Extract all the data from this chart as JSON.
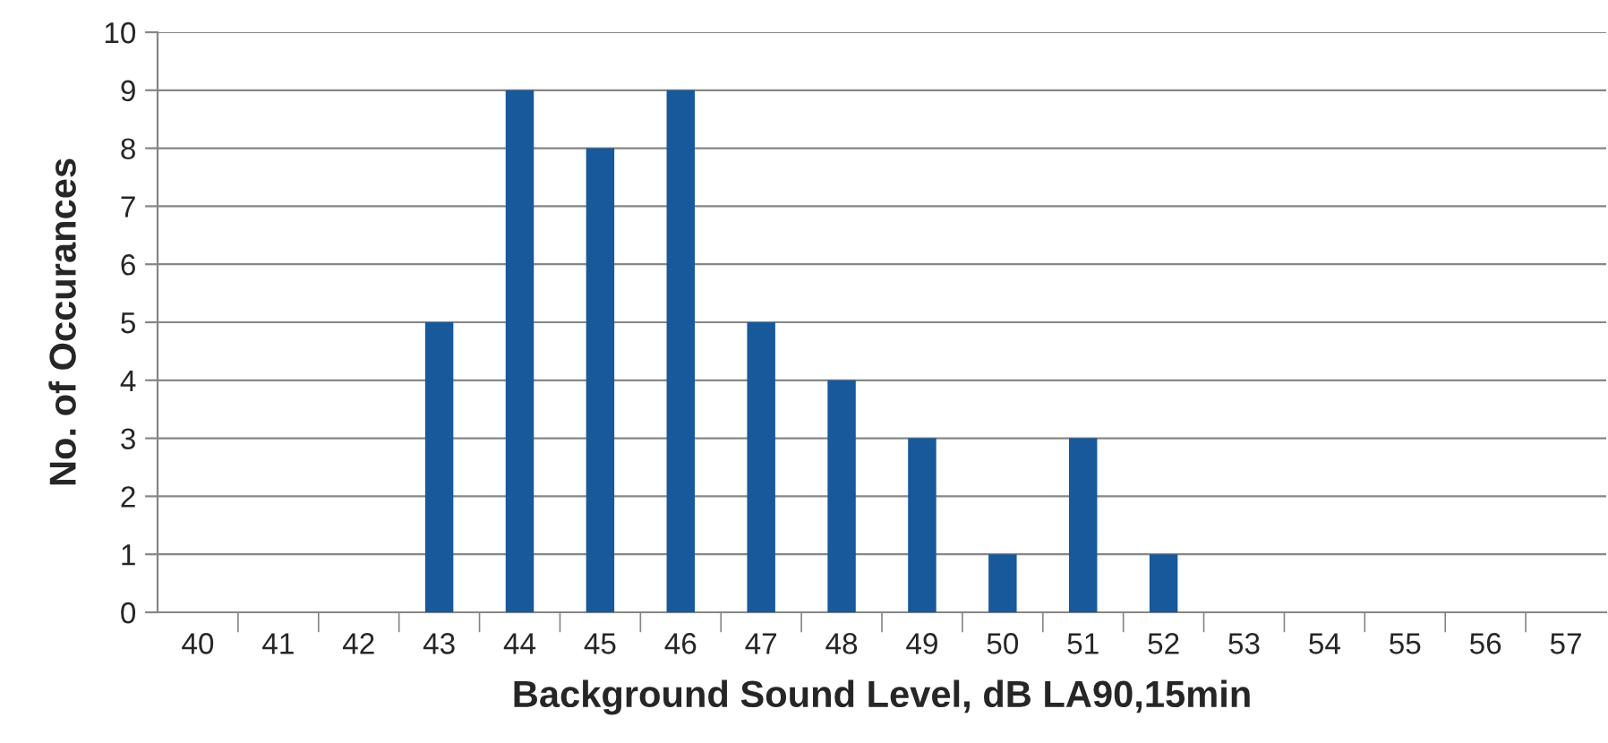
{
  "chart_data": {
    "type": "bar",
    "xlabel": "Background Sound Level, dB LA90,15min",
    "ylabel": "No. of Occurances",
    "categories": [
      "40",
      "41",
      "42",
      "43",
      "44",
      "45",
      "46",
      "47",
      "48",
      "49",
      "50",
      "51",
      "52",
      "53",
      "54",
      "55",
      "56",
      "57"
    ],
    "values": [
      0,
      0,
      0,
      5,
      9,
      8,
      9,
      5,
      4,
      3,
      1,
      3,
      1,
      0,
      0,
      0,
      0,
      0
    ],
    "color": "#17599a",
    "ylim": [
      0,
      10
    ],
    "yticks": [
      0,
      1,
      2,
      3,
      4,
      5,
      6,
      7,
      8,
      9,
      10
    ],
    "grid": "y",
    "legend": false
  }
}
